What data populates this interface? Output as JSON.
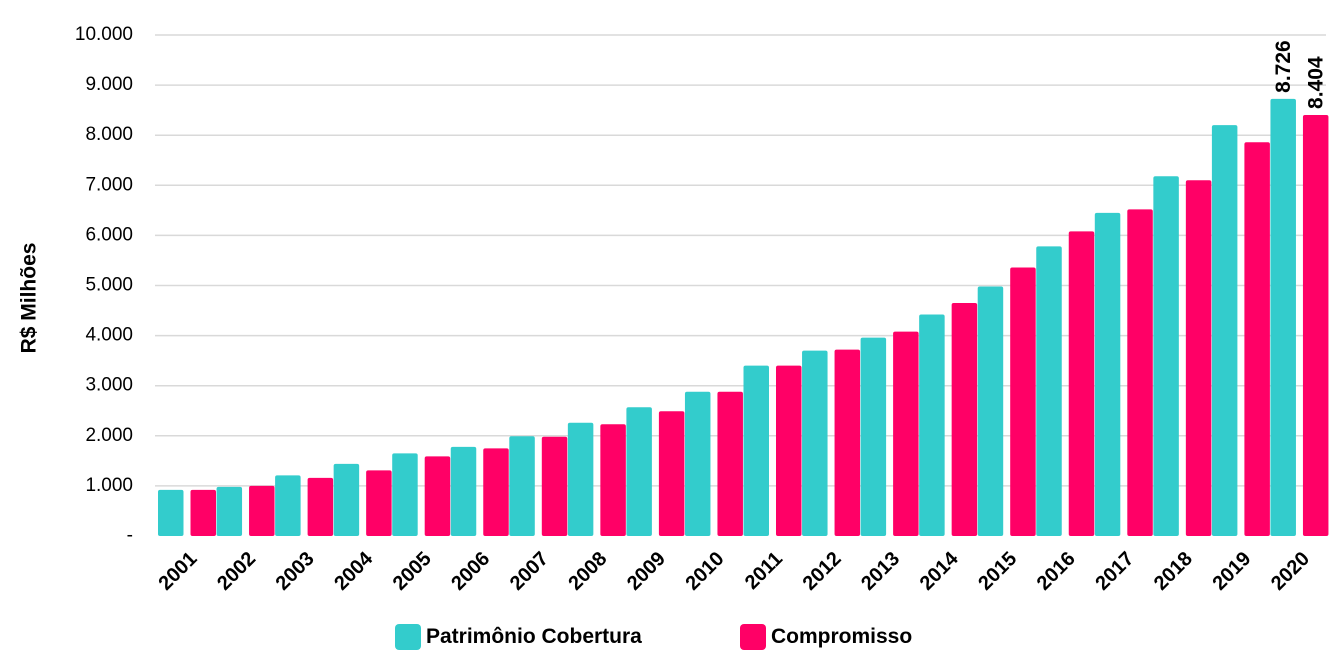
{
  "chart_data": {
    "type": "bar",
    "title": "",
    "xlabel": "",
    "ylabel": "R$ Milhões",
    "ylim": [
      0,
      10000
    ],
    "yticks": [
      {
        "value": 0,
        "label": "-"
      },
      {
        "value": 1000,
        "label": "1.000"
      },
      {
        "value": 2000,
        "label": "2.000"
      },
      {
        "value": 3000,
        "label": "3.000"
      },
      {
        "value": 4000,
        "label": "4.000"
      },
      {
        "value": 5000,
        "label": "5.000"
      },
      {
        "value": 6000,
        "label": "6.000"
      },
      {
        "value": 7000,
        "label": "7.000"
      },
      {
        "value": 8000,
        "label": "8.000"
      },
      {
        "value": 9000,
        "label": "9.000"
      },
      {
        "value": 10000,
        "label": "10.000"
      }
    ],
    "grid": true,
    "legend_position": "bottom",
    "categories": [
      "2001",
      "2002",
      "2003",
      "2004",
      "2005",
      "2006",
      "2007",
      "2008",
      "2009",
      "2010",
      "2011",
      "2012",
      "2013",
      "2014",
      "2015",
      "2016",
      "2017",
      "2018",
      "2019",
      "2020"
    ],
    "series": [
      {
        "name": "Patrimônio Cobertura",
        "color": "#33CCCC",
        "values": [
          920,
          980,
          1210,
          1440,
          1650,
          1780,
          1990,
          2260,
          2570,
          2880,
          3400,
          3700,
          3960,
          4420,
          4980,
          5780,
          6450,
          7180,
          8200,
          8726
        ],
        "data_labels": {
          "19": "8.726"
        }
      },
      {
        "name": "Compromisso",
        "color": "#FF0066",
        "values": [
          920,
          1000,
          1160,
          1310,
          1590,
          1750,
          1980,
          2230,
          2490,
          2880,
          3400,
          3720,
          4080,
          4650,
          5360,
          6080,
          6520,
          7100,
          7860,
          8404
        ],
        "data_labels": {
          "19": "8.404"
        }
      }
    ]
  }
}
